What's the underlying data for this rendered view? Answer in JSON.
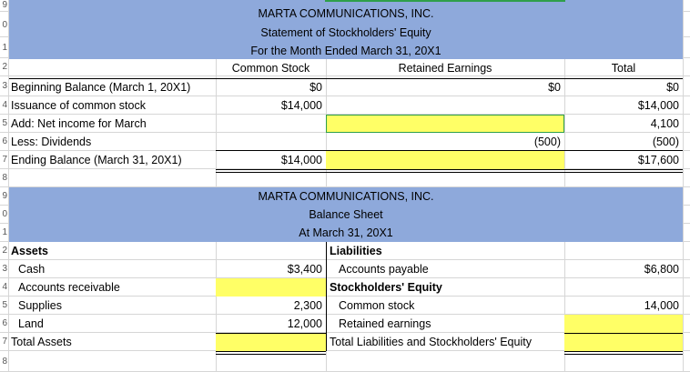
{
  "row_numbers": [
    "9",
    "0",
    "1",
    "2",
    "3",
    "4",
    "5",
    "6",
    "7",
    "8",
    "9",
    "0",
    "1",
    "2",
    "3",
    "4",
    "5",
    "6",
    "7",
    "8"
  ],
  "statement": {
    "company": "MARTA COMMUNICATIONS, INC.",
    "title": "Statement of Stockholders' Equity",
    "period": "For the Month Ended  March 31, 20X1",
    "col_common": "Common Stock",
    "col_retained": "Retained Earnings",
    "col_total": "Total",
    "rows": [
      {
        "label": "Beginning Balance (March 1, 20X1)",
        "common": "$0",
        "retained": "$0",
        "total": "$0"
      },
      {
        "label": "Issuance of common stock",
        "common": "$14,000",
        "retained": "",
        "total": "$14,000"
      },
      {
        "label": "Add: Net income for March",
        "common": "",
        "retained": "",
        "total": "4,100"
      },
      {
        "label": "Less: Dividends",
        "common": "",
        "retained": "(500)",
        "total": "(500)"
      },
      {
        "label": "Ending Balance (March 31, 20X1)",
        "common": "$14,000",
        "retained": "",
        "total": "$17,600"
      }
    ]
  },
  "balance": {
    "company": "MARTA COMMUNICATIONS, INC.",
    "title": "Balance Sheet",
    "date": "At March 31, 20X1",
    "assets_header": "Assets",
    "liabilities_header": "Liabilities",
    "equity_header": "Stockholders' Equity",
    "assets": [
      {
        "label": "Cash",
        "value": "$3,400"
      },
      {
        "label": "Accounts receivable",
        "value": ""
      },
      {
        "label": "Supplies",
        "value": "2,300"
      },
      {
        "label": "Land",
        "value": "12,000"
      }
    ],
    "total_assets_label": "Total Assets",
    "total_assets_value": "",
    "liab_rows": [
      {
        "label": "Accounts payable",
        "value": "$6,800"
      },
      {
        "label": "Common stock",
        "value": "14,000"
      },
      {
        "label": "Retained earnings",
        "value": ""
      }
    ],
    "total_liab_label": "Total Liabilities and Stockholders' Equity",
    "total_liab_value": ""
  },
  "colors": {
    "header_blue": "#8ea9db",
    "input_yellow": "#ffff66",
    "gridline": "#d6d6d6"
  }
}
